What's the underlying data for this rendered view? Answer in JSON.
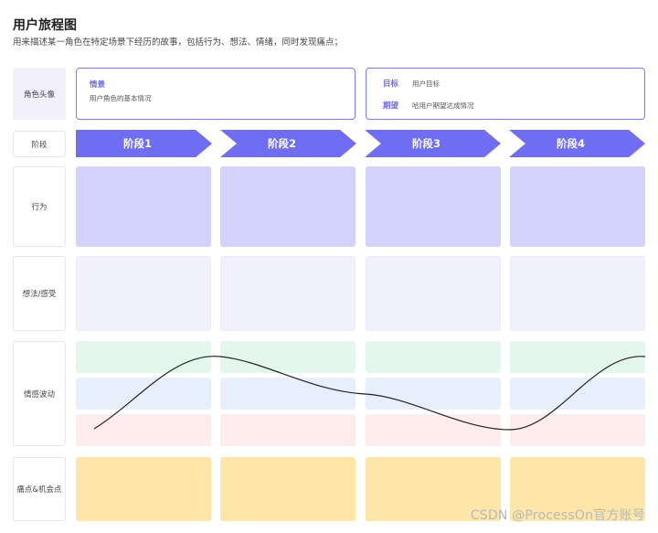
{
  "header": {
    "title": "用户旅程图",
    "subtitle": "用来描述某一角色在特定场景下经历的故事，包括行为、想法、情绪，同时发现痛点；"
  },
  "rows": {
    "avatar": "角色头像",
    "stage": "阶段",
    "behavior": "行为",
    "thought": "想法/感受",
    "emotion": "情感波动",
    "pain": "痛点&机会点"
  },
  "scenario": {
    "heading": "情景",
    "text": "用户角色的基本情况"
  },
  "goals": {
    "goal_key": "目标",
    "goal_val": "用户目标",
    "expect_key": "期望",
    "expect_val": "哈用户期望达成情况"
  },
  "stages": [
    "阶段1",
    "阶段2",
    "阶段3",
    "阶段4"
  ],
  "colors": {
    "accent": "#6f6ef2",
    "behavior": "#d2d2fc",
    "thought": "#f1f0fd",
    "emotion_high": "#e4f7ec",
    "emotion_mid": "#e8effc",
    "emotion_low": "#fdeceb",
    "pain": "#fde6a7"
  },
  "watermark": "CSDN @ProcessOn官方账号"
}
